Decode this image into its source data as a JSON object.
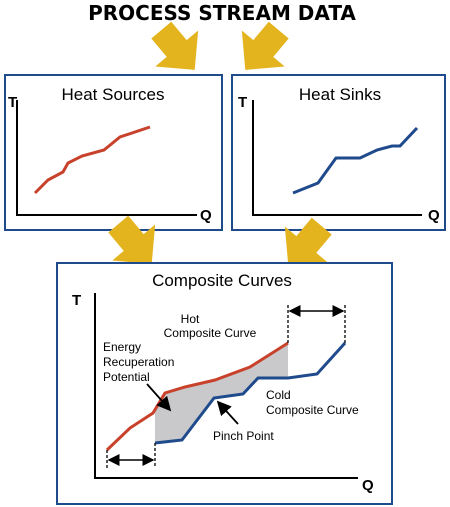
{
  "header": {
    "title": "PROCESS STREAM DATA"
  },
  "panels": [
    {
      "title": "Heat Sources",
      "y_axis": "T",
      "x_axis": "Q"
    },
    {
      "title": "Heat Sinks",
      "y_axis": "T",
      "x_axis": "Q"
    }
  ],
  "composite": {
    "title": "Composite Curves",
    "y_axis": "T",
    "x_axis": "Q",
    "hot_label": [
      "Hot",
      "Composite Curve"
    ],
    "energy_label": [
      "Energy",
      "Recuperation",
      "Potential"
    ],
    "cold_label": [
      "Cold",
      "Composite Curve"
    ],
    "pinch_label": "Pinch Point"
  }
}
